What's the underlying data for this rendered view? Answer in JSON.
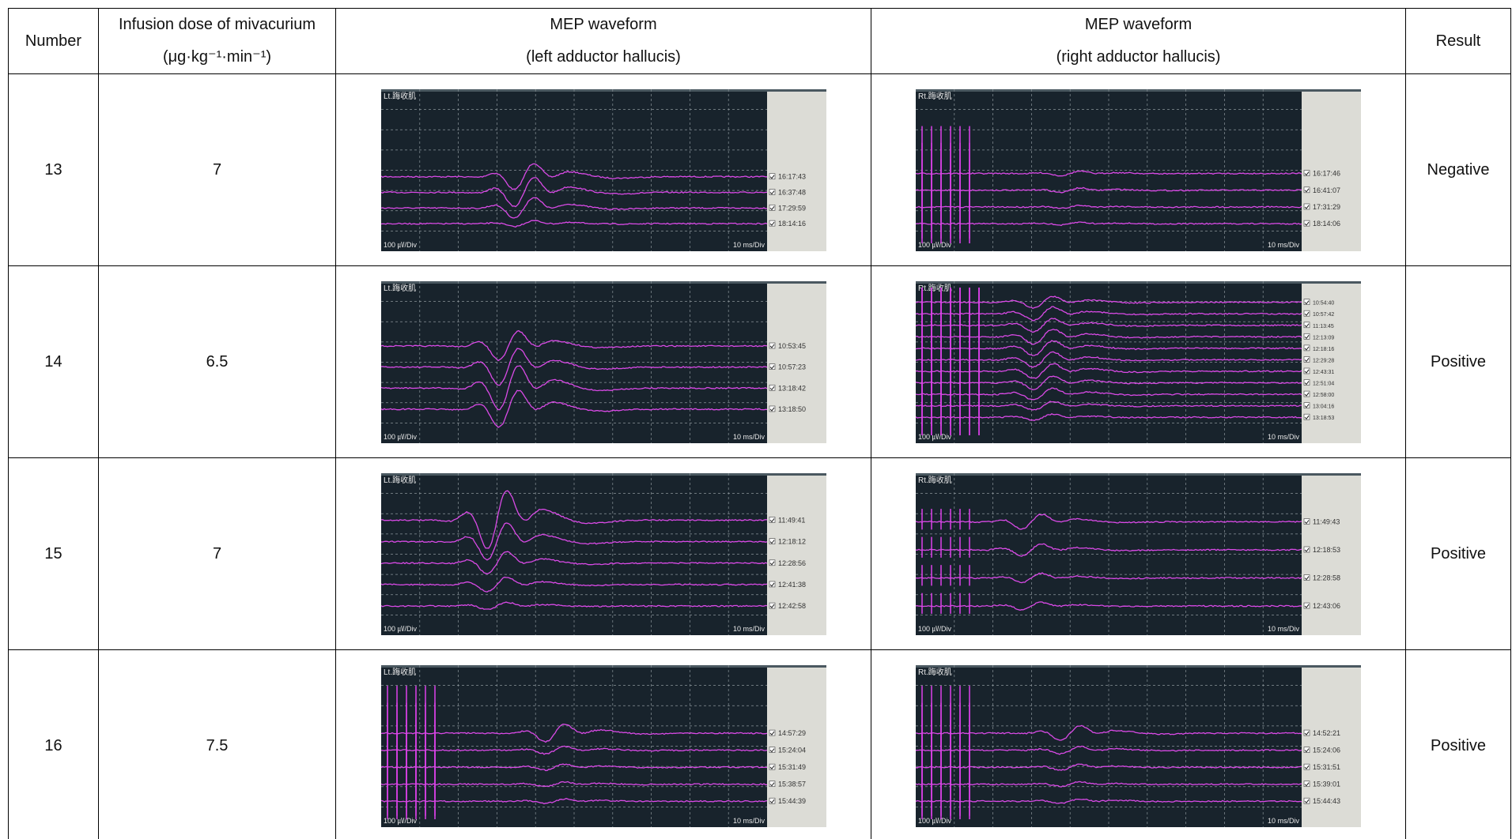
{
  "table": {
    "header": [
      [
        "Number"
      ],
      [
        "Infusion dose of mivacurium",
        "(μg·kg⁻¹·min⁻¹)"
      ],
      [
        "MEP waveform",
        "(left adductor hallucis)"
      ],
      [
        "MEP waveform",
        "(right adductor hallucis)"
      ],
      [
        "Result"
      ]
    ],
    "rows": [
      {
        "number": 13,
        "dose": 7,
        "left": {
          "label": "Lt.踇收肌",
          "y_scale": "100 ㎶/Div",
          "x_scale": "10 ms/Div",
          "times": [
            "16:17:43",
            "16:37:48",
            "17:29:59",
            "18:14:16"
          ]
        },
        "right": {
          "label": "Rt.踇收肌",
          "y_scale": "100 ㎶/Div",
          "x_scale": "10 ms/Div",
          "times": [
            "16:17:46",
            "16:41:07",
            "17:31:29",
            "18:14:06"
          ]
        },
        "result": "Negative"
      },
      {
        "number": 14,
        "dose": 6.5,
        "left": {
          "label": "Lt.踇收肌",
          "y_scale": "100 ㎶/Div",
          "x_scale": "10 ms/Div",
          "times": [
            "10:53:45",
            "10:57:23",
            "13:18:42",
            "13:18:50"
          ]
        },
        "right": {
          "label": "Rt.踇收肌",
          "y_scale": "100 ㎶/Div",
          "x_scale": "10 ms/Div",
          "times": [
            "10:54:40",
            "10:57:42",
            "11:13:45",
            "12:13:09",
            "12:18:16",
            "12:29:28",
            "12:43:31",
            "12:51:04",
            "12:58:00",
            "13:04:16",
            "13:18:53"
          ]
        },
        "result": "Positive"
      },
      {
        "number": 15,
        "dose": 7,
        "left": {
          "label": "Lt.踇收肌",
          "y_scale": "100 ㎶/Div",
          "x_scale": "10 ms/Div",
          "times": [
            "11:49:41",
            "12:18:12",
            "12:28:56",
            "12:41:38",
            "12:42:58"
          ]
        },
        "right": {
          "label": "Rt.踇收肌",
          "y_scale": "100 ㎶/Div",
          "x_scale": "10 ms/Div",
          "times": [
            "11:49:43",
            "12:18:53",
            "12:28:58",
            "12:43:06"
          ]
        },
        "result": "Positive"
      },
      {
        "number": 16,
        "dose": 7.5,
        "left": {
          "label": "Lt.踇收肌",
          "y_scale": "100 ㎶/Div",
          "x_scale": "10 ms/Div",
          "times": [
            "14:57:29",
            "15:24:04",
            "15:31:49",
            "15:38:57",
            "15:44:39"
          ]
        },
        "right": {
          "label": "Rt.踇收肌",
          "y_scale": "100 ㎶/Div",
          "x_scale": "10 ms/Div",
          "times": [
            "14:52:21",
            "15:24:06",
            "15:31:51",
            "15:39:01",
            "15:44:43"
          ]
        },
        "result": "Positive"
      }
    ]
  }
}
